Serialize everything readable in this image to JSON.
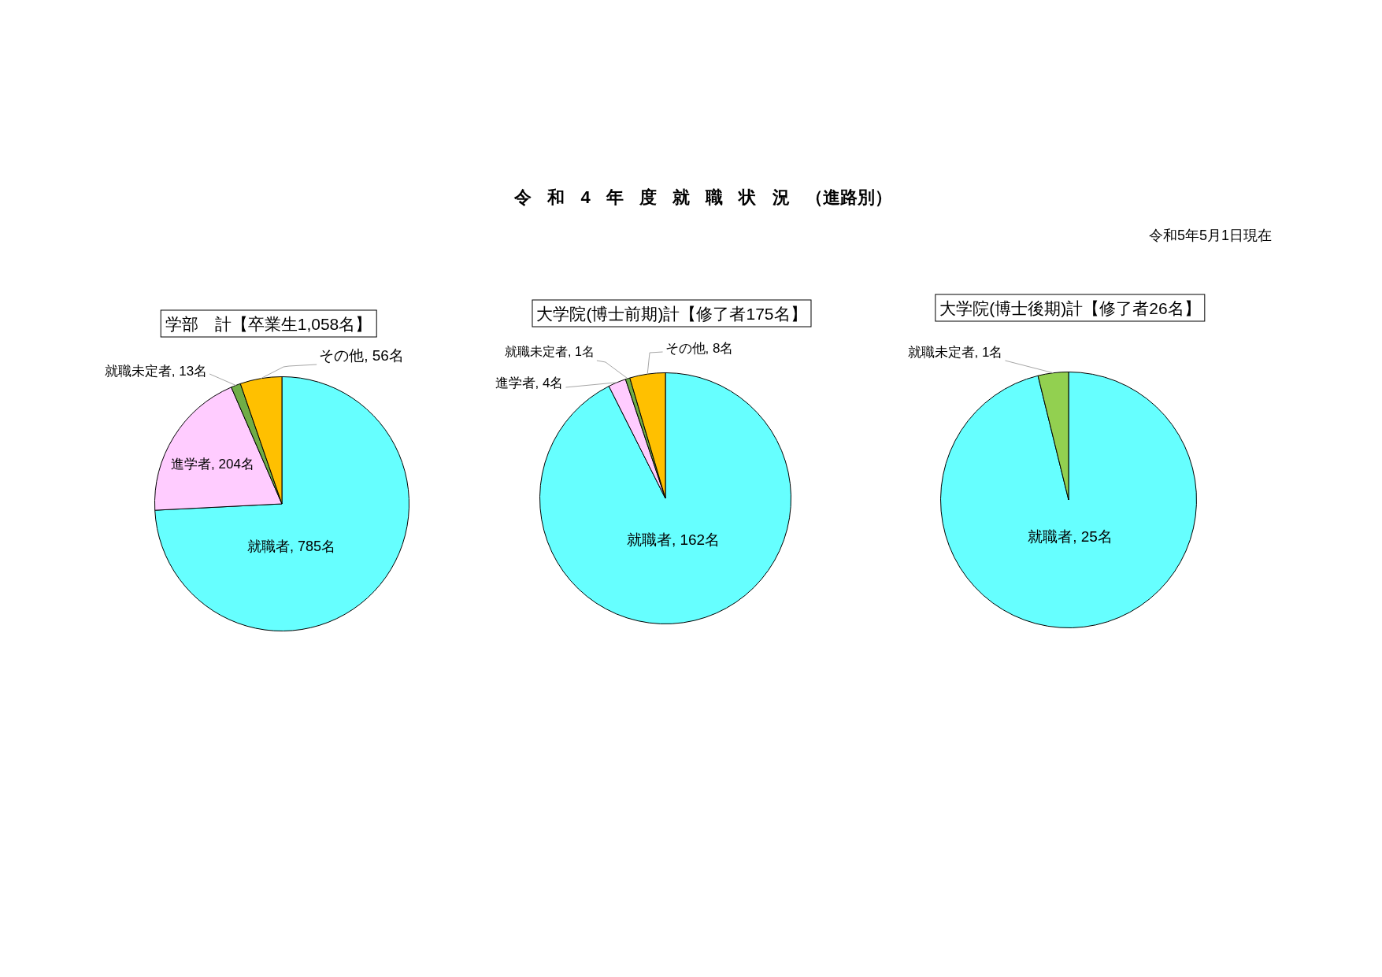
{
  "chart_data": [
    {
      "type": "other",
      "title": "令 和 4 年 度 就 職 状 況 （進路別）",
      "annotations": [
        "令和5年5月1日現在"
      ]
    },
    {
      "type": "pie",
      "title": "学部　計【卒業生1,058名】",
      "categories": [
        "就職者",
        "進学者",
        "就職未定者",
        "その他"
      ],
      "values": [
        785,
        204,
        13,
        56
      ],
      "value_labels": [
        "785名",
        "204名",
        "13名",
        "56名"
      ],
      "colors": [
        "#66ffff",
        "#ffccff",
        "#70ad47",
        "#ffc000"
      ]
    },
    {
      "type": "pie",
      "title": "大学院(博士前期)計【修了者175名】",
      "categories": [
        "就職者",
        "進学者",
        "就職未定者",
        "その他"
      ],
      "values": [
        162,
        4,
        1,
        8
      ],
      "value_labels": [
        "162名",
        "4名",
        "1名",
        "8名"
      ],
      "colors": [
        "#66ffff",
        "#ffccff",
        "#70ad47",
        "#ffc000"
      ]
    },
    {
      "type": "pie",
      "title": "大学院(博士後期)計【修了者26名】",
      "categories": [
        "就職者",
        "就職未定者"
      ],
      "values": [
        25,
        1
      ],
      "value_labels": [
        "25名",
        "1名"
      ],
      "colors": [
        "#66ffff",
        "#92d050"
      ]
    }
  ]
}
